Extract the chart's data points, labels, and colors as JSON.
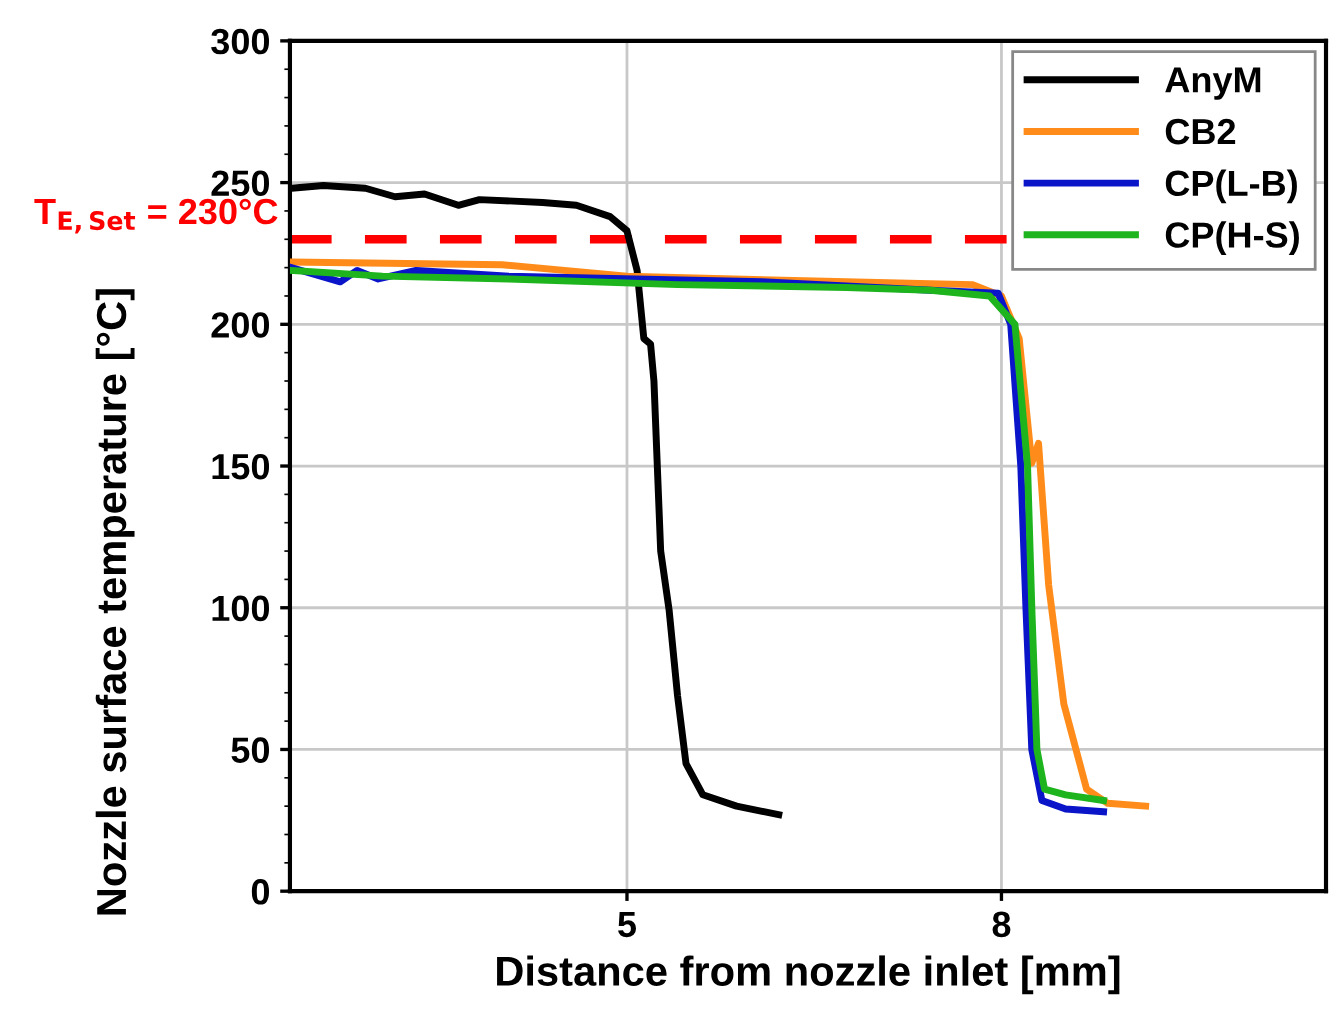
{
  "chart_data": {
    "type": "line",
    "xlabel": "Distance from nozzle inlet [mm]",
    "ylabel": "Nozzle surface temperature [°C]",
    "xlim": [
      2.3,
      10.6
    ],
    "xticks": [
      5,
      8
    ],
    "ylim": [
      0,
      300
    ],
    "yticks": [
      0,
      50,
      100,
      150,
      200,
      250,
      300
    ],
    "grid": true,
    "legend": "top right",
    "series": [
      {
        "name": "AnyM",
        "color": "#000000",
        "x": [
          2.311,
          2.568,
          2.905,
          3.142,
          3.378,
          3.649,
          3.818,
          4.324,
          4.595,
          4.865,
          5.0,
          5.081,
          5.135,
          5.189,
          5.216,
          5.27,
          5.338,
          5.405,
          5.473,
          5.608,
          5.878,
          6.216
        ],
        "values": [
          248,
          249,
          248,
          245,
          246,
          242,
          244,
          243,
          242,
          238,
          233,
          219,
          195,
          193,
          180,
          120,
          99,
          69,
          45,
          34,
          30,
          27
        ]
      },
      {
        "name": "CB2",
        "color": "#ff8c1a",
        "x": [
          2.311,
          4.0,
          5.0,
          6.757,
          7.77,
          8.0,
          8.142,
          8.243,
          8.297,
          8.378,
          8.5,
          8.682,
          8.851,
          9.155
        ],
        "values": [
          222,
          221,
          217,
          215,
          214,
          210,
          195,
          151,
          158,
          108,
          66,
          36,
          31,
          30
        ]
      },
      {
        "name": "CP(L-B)",
        "color": "#0a14c8",
        "x": [
          2.311,
          2.703,
          2.838,
          3.007,
          3.311,
          4.054,
          6.081,
          7.432,
          7.973,
          8.074,
          8.155,
          8.196,
          8.243,
          8.324,
          8.514,
          8.818
        ],
        "values": [
          220,
          215,
          219,
          216,
          219,
          217,
          215,
          212,
          211,
          200,
          150,
          100,
          50,
          32,
          29,
          28
        ]
      },
      {
        "name": "CP(H-S)",
        "color": "#1eb41e",
        "x": [
          2.311,
          3.041,
          4.054,
          5.405,
          6.757,
          7.432,
          7.905,
          8.108,
          8.209,
          8.243,
          8.284,
          8.345,
          8.514,
          8.818
        ],
        "values": [
          219,
          217,
          216,
          214,
          213,
          212,
          210,
          200,
          150,
          100,
          50,
          36,
          34,
          32
        ]
      }
    ],
    "ref_lines": [
      {
        "axis": "y",
        "value": 230,
        "label": "T$_{E,Set}$ = 230°C",
        "color": "#ff0000",
        "line_style": "dashed"
      }
    ]
  }
}
